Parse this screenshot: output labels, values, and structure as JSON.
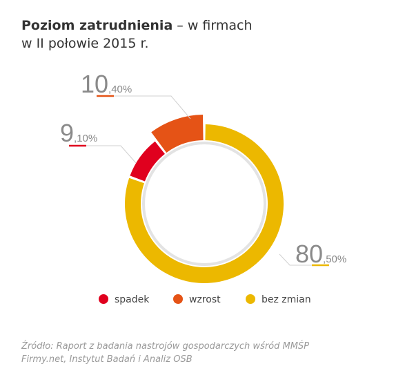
{
  "title": {
    "bold": "Poziom zatrudnienia",
    "rest": " – w firmach",
    "line2": "w II połowie 2015 r."
  },
  "chart_data": {
    "type": "pie",
    "title": "Poziom zatrudnienia – w firmach w II połowie 2015 r.",
    "slices": [
      {
        "name": "bez zmian",
        "value": 80.5,
        "int": "80",
        "dec": ",50%",
        "color": "#ecb800"
      },
      {
        "name": "spadek",
        "value": 9.1,
        "int": "9",
        "dec": ",10%",
        "color": "#e0001e"
      },
      {
        "name": "wzrost",
        "value": 10.4,
        "int": "10",
        "dec": ",40%",
        "color": "#e55316"
      }
    ],
    "legend": [
      "spadek",
      "wzrost",
      "bez zmian"
    ],
    "legend_placement": "bottom"
  },
  "source": {
    "line1": "Źródło: Raport z badania nastrojów gospodarczych wśród MMŚP",
    "line2": "Firmy.net, Instytut Badań i Analiz OSB"
  }
}
